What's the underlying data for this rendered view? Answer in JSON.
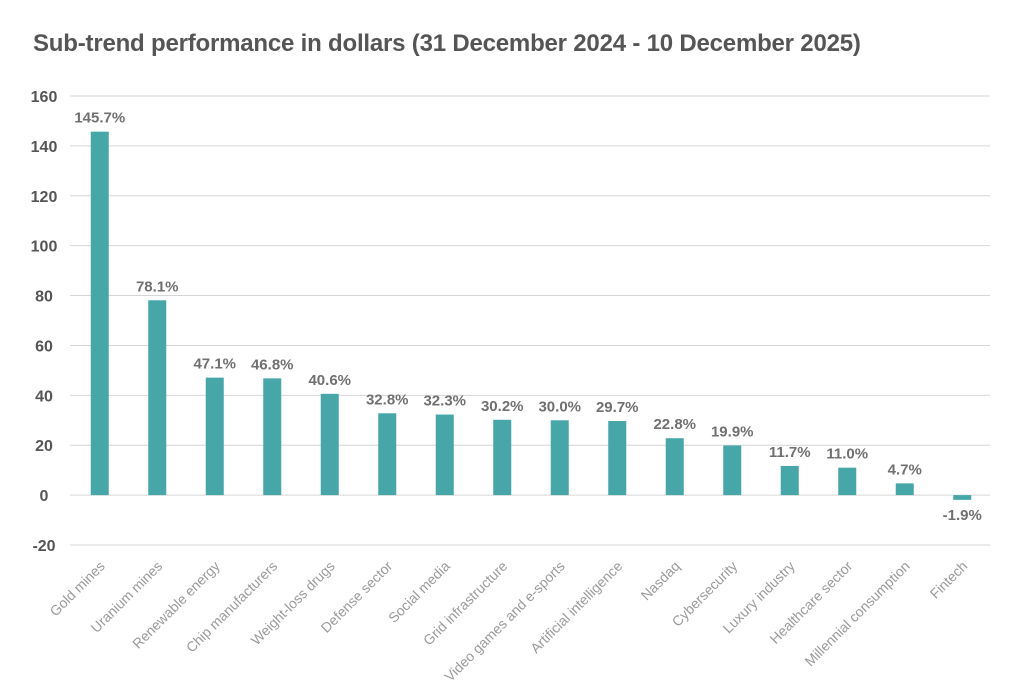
{
  "title": "Sub-trend performance in dollars (31 December 2024 - 10 December 2025)",
  "chart_data": {
    "type": "bar",
    "title": "Sub-trend performance in dollars (31 December 2024 - 10 December 2025)",
    "xlabel": "",
    "ylabel": "",
    "ylim": [
      -20,
      160
    ],
    "yticks": [
      "-20",
      "0",
      "20",
      "40",
      "60",
      "80",
      "100",
      "120",
      "140",
      "160"
    ],
    "grid": true,
    "bar_color": "#47a6a8",
    "categories": [
      "Gold mines",
      "Uranium mines",
      "Renewable energy",
      "Chip manufacturers",
      "Weight-loss drugs",
      "Defense sector",
      "Social media",
      "Grid infrastructure",
      "Video games and e-sports",
      "Artificial intelligence",
      "Nasdaq",
      "Cybersecurity",
      "Luxury industry",
      "Healthcare sector",
      "Millennial consumption",
      "Fintech"
    ],
    "values": [
      145.7,
      78.1,
      47.1,
      46.8,
      40.6,
      32.8,
      32.3,
      30.2,
      30.0,
      29.7,
      22.8,
      19.9,
      11.7,
      11.0,
      4.7,
      -1.9
    ],
    "data_labels": [
      "145.7%",
      "78.1%",
      "47.1%",
      "46.8%",
      "40.6%",
      "32.8%",
      "32.3%",
      "30.2%",
      "30.0%",
      "29.7%",
      "22.8%",
      "19.9%",
      "11.7%",
      "11.0%",
      "4.7%",
      "-1.9%"
    ]
  }
}
